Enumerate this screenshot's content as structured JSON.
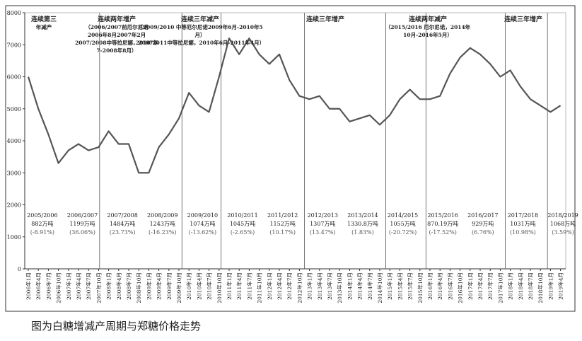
{
  "chart_data": {
    "type": "line",
    "caption": "图为白糖增减产周期与郑糖价格走势",
    "categories": [
      "2006年1月",
      "2006年4月",
      "2006年7月",
      "2006年10月",
      "2007年1月",
      "2007年4月",
      "2007年7月",
      "2007年10月",
      "2008年1月",
      "2008年4月",
      "2008年7月",
      "2008年10月",
      "2009年1月",
      "2009年4月",
      "2009年7月",
      "2009年10月",
      "2010年1月",
      "2010年4月",
      "2010年7月",
      "2010年10月",
      "2011年1月",
      "2011年4月",
      "2011年7月",
      "2011年10月",
      "2012年1月",
      "2012年4月",
      "2012年7月",
      "2012年10月",
      "2013年1月",
      "2013年4月",
      "2013年7月",
      "2013年10月",
      "2014年1月",
      "2014年4月",
      "2014年7月",
      "2014年10月",
      "2015年1月",
      "2015年4月",
      "2015年7月",
      "2015年10月",
      "2016年1月",
      "2016年4月",
      "2016年7月",
      "2016年10月",
      "2017年1月",
      "2017年4月",
      "2017年7月",
      "2017年10月",
      "2018年1月",
      "2018年4月",
      "2018年7月",
      "2018年10月",
      "2019年1月",
      "2019年4月"
    ],
    "values": [
      6000,
      5000,
      4200,
      3300,
      3700,
      3900,
      3700,
      3800,
      4300,
      3900,
      3900,
      3000,
      3000,
      3800,
      4200,
      4700,
      5500,
      5100,
      4900,
      6000,
      7200,
      6700,
      7200,
      6700,
      6400,
      6700,
      5900,
      5400,
      5300,
      5400,
      5000,
      5000,
      4600,
      4700,
      4800,
      4500,
      4800,
      5300,
      5600,
      5300,
      5300,
      5400,
      6100,
      6600,
      6900,
      6700,
      6400,
      6000,
      6200,
      5700,
      5300,
      5100,
      4900,
      5100
    ],
    "color": "#555555",
    "ylim": [
      0,
      8000
    ],
    "yticks": [
      0,
      1000,
      2000,
      3000,
      4000,
      5000,
      6000,
      7000,
      8000
    ],
    "annotations": [
      [
        "连续第三",
        "年减产"
      ],
      [
        "连续两年增产",
        "（2006/2007前厄尔尼诺",
        "2006年8月2007年2月",
        "2007/2008中等拉尼娜，2007年",
        "7-2008年8月）"
      ],
      [
        "连续三年减产",
        "（2009/2010 中等厄尔尼诺2009年6月-2010年5",
        "月）",
        "2010/2011中等拉尼娜，2010年6月-2011年4月）"
      ],
      [
        "连续三年增产"
      ],
      [
        "连续两年减产",
        "（2015/2016 厄尔尼诺，2014年",
        "10月-2016年5月）"
      ],
      [
        "连续三年增产"
      ]
    ],
    "seasons": [
      {
        "season": "2005/2006",
        "output": "882万吨",
        "change": "(-8.91%)"
      },
      {
        "season": "2006/2007",
        "output": "1199万吨",
        "change": "(36.06%)"
      },
      {
        "season": "2007/2008",
        "output": "1484万吨",
        "change": "(23.73%)"
      },
      {
        "season": "2008/2009",
        "output": "1243万吨",
        "change": "(-16.23%)"
      },
      {
        "season": "2009/2010",
        "output": "1074万吨",
        "change": "(-13.62%)"
      },
      {
        "season": "2010/2011",
        "output": "1045万吨",
        "change": "(-2.65%)"
      },
      {
        "season": "2011/2012",
        "output": "1152万吨",
        "change": "(10.17%)"
      },
      {
        "season": "2012/2013",
        "output": "1307万吨",
        "change": "(13.47%)"
      },
      {
        "season": "2013/2014",
        "output": "1330.8万吨",
        "change": "(1.83%)"
      },
      {
        "season": "2014/2015",
        "output": "1055万吨",
        "change": "(-20.72%)"
      },
      {
        "season": "2015/2016",
        "output": "870.19万吨",
        "change": "(-17.52%)"
      },
      {
        "season": "2016/2017",
        "output": "929万吨",
        "change": "(6.76%)"
      },
      {
        "season": "2017/2018",
        "output": "1031万吨",
        "change": "(10.98%)"
      },
      {
        "season": "2018/2019",
        "output": "1068万吨",
        "change": "(3.59%)"
      }
    ]
  }
}
